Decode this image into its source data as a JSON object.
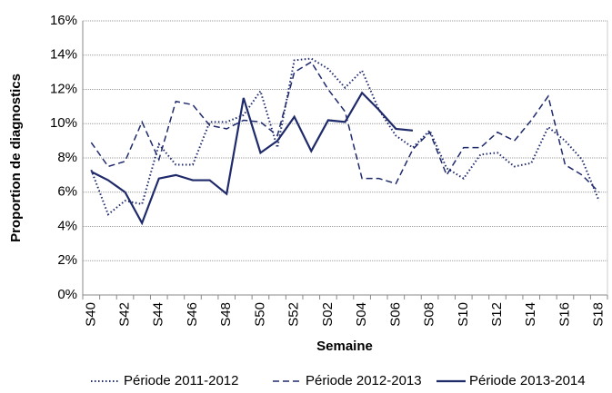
{
  "chart_data": {
    "type": "line",
    "y_label": "Proportion de diagnostics",
    "x_label": "Semaine",
    "categories": [
      "S40",
      null,
      "S42",
      null,
      "S44",
      null,
      "S46",
      null,
      "S48",
      null,
      "S50",
      null,
      "S52",
      null,
      "S02",
      null,
      "S04",
      null,
      "S06",
      null,
      "S08",
      null,
      "S10",
      null,
      "S12",
      null,
      "S14",
      null,
      "S16",
      null,
      "S18"
    ],
    "ylim": [
      0,
      16
    ],
    "yticks": [
      {
        "value": 0,
        "label": "0%"
      },
      {
        "value": 2,
        "label": "2%"
      },
      {
        "value": 4,
        "label": "4%"
      },
      {
        "value": 6,
        "label": "6%"
      },
      {
        "value": 8,
        "label": "8%"
      },
      {
        "value": 10,
        "label": "10%"
      },
      {
        "value": 12,
        "label": "12%"
      },
      {
        "value": 14,
        "label": "14%"
      },
      {
        "value": 16,
        "label": "16%"
      }
    ],
    "grid": true,
    "legend": "bottom",
    "series": [
      {
        "name": "Période 2011-2012",
        "color": "#1f2a6b",
        "dash": "dotted",
        "values": [
          7.3,
          4.7,
          5.5,
          5.3,
          8.8,
          7.6,
          7.6,
          10.1,
          10.1,
          10.5,
          11.9,
          8.6,
          13.7,
          13.8,
          13.2,
          12.1,
          13.1,
          10.8,
          9.3,
          8.6,
          9.6,
          7.4,
          6.8,
          8.2,
          8.3,
          7.5,
          7.7,
          9.8,
          9.0,
          7.9,
          5.5
        ]
      },
      {
        "name": "Période 2012-2013",
        "color": "#1f2a6b",
        "dash": "dashed",
        "values": [
          8.9,
          7.5,
          7.8,
          10.1,
          7.9,
          11.3,
          11.1,
          9.9,
          9.7,
          10.2,
          10.1,
          9.3,
          13.0,
          13.6,
          12.0,
          10.7,
          6.8,
          6.8,
          6.5,
          8.5,
          9.5,
          7.0,
          8.6,
          8.6,
          9.5,
          9.0,
          10.2,
          11.6,
          7.6,
          7.0,
          6.0
        ]
      },
      {
        "name": "Période 2013-2014",
        "color": "#1f2a6b",
        "dash": "solid",
        "values": [
          7.2,
          6.7,
          6.0,
          4.2,
          6.8,
          7.0,
          6.7,
          6.7,
          5.9,
          11.5,
          8.3,
          9.0,
          10.4,
          8.4,
          10.2,
          10.1,
          11.8,
          10.8,
          9.7,
          9.6,
          null,
          null,
          null,
          null,
          null,
          null,
          null,
          null,
          null,
          null,
          null
        ]
      }
    ]
  }
}
